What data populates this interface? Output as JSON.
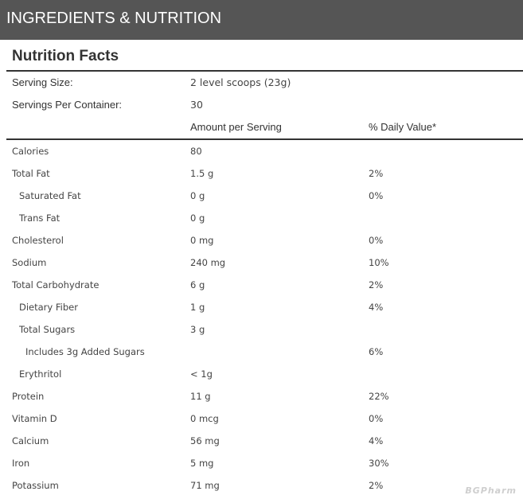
{
  "header": {
    "title": "INGREDIENTS & NUTRITION"
  },
  "nutrition": {
    "title": "Nutrition Facts",
    "serving_size": {
      "label": "Serving Size:",
      "value": "2 level scoops (23g)"
    },
    "servings_per_container": {
      "label": "Servings Per Container:",
      "value": "30"
    },
    "columns": {
      "amount": "Amount per Serving",
      "daily_value": "% Daily Value*"
    },
    "rows": [
      {
        "name": "Calories",
        "amount": "80",
        "dv": ""
      },
      {
        "name": "Total Fat",
        "amount": "1.5 g",
        "dv": "2%"
      },
      {
        "name": "Saturated Fat",
        "amount": "0 g",
        "dv": "0%"
      },
      {
        "name": "Trans Fat",
        "amount": "0 g",
        "dv": ""
      },
      {
        "name": "Cholesterol",
        "amount": "0 mg",
        "dv": "0%"
      },
      {
        "name": "Sodium",
        "amount": "240 mg",
        "dv": "10%"
      },
      {
        "name": "Total Carbohydrate",
        "amount": "6 g",
        "dv": "2%"
      },
      {
        "name": "Dietary Fiber",
        "amount": "1 g",
        "dv": "4%"
      },
      {
        "name": "Total Sugars",
        "amount": "3 g",
        "dv": ""
      },
      {
        "name": "Includes 3g Added Sugars",
        "amount": "",
        "dv": "6%"
      },
      {
        "name": "Erythritol",
        "amount": "< 1g",
        "dv": ""
      },
      {
        "name": "Protein",
        "amount": "11 g",
        "dv": "22%"
      },
      {
        "name": "Vitamin D",
        "amount": "0 mcg",
        "dv": "0%"
      },
      {
        "name": "Calcium",
        "amount": "56 mg",
        "dv": "4%"
      },
      {
        "name": "Iron",
        "amount": "5 mg",
        "dv": "30%"
      },
      {
        "name": "Potassium",
        "amount": "71 mg",
        "dv": "2%"
      }
    ]
  },
  "watermark": "BGPharm",
  "colors": {
    "header_bg": "#555555",
    "header_text": "#ffffff",
    "text": "#333333",
    "rule": "#333333"
  }
}
